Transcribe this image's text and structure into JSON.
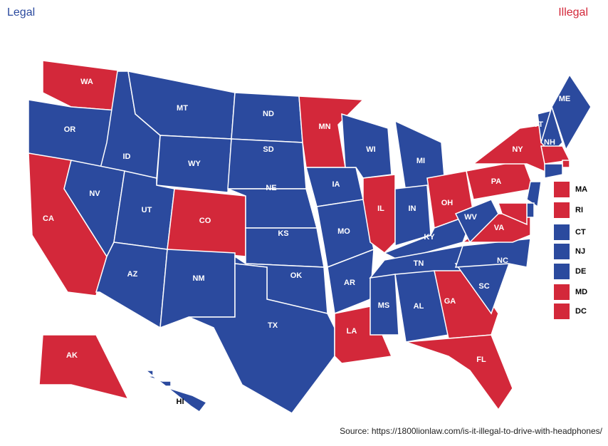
{
  "legend": {
    "legal": {
      "label": "Legal",
      "color": "#2b4a9e"
    },
    "illegal": {
      "label": "Illegal",
      "color": "#d3283a"
    }
  },
  "states": [
    {
      "label": "WA",
      "color": "#d3283a"
    },
    {
      "label": "OR",
      "color": "#2b4a9e"
    },
    {
      "label": "CA",
      "color": "#d3283a"
    },
    {
      "label": "ID",
      "color": "#2b4a9e"
    },
    {
      "label": "NV",
      "color": "#2b4a9e"
    },
    {
      "label": "MT",
      "color": "#2b4a9e"
    },
    {
      "label": "WY",
      "color": "#2b4a9e"
    },
    {
      "label": "UT",
      "color": "#2b4a9e"
    },
    {
      "label": "CO",
      "color": "#d3283a"
    },
    {
      "label": "AZ",
      "color": "#2b4a9e"
    },
    {
      "label": "NM",
      "color": "#2b4a9e"
    },
    {
      "label": "ND",
      "color": "#2b4a9e"
    },
    {
      "label": "SD",
      "color": "#2b4a9e"
    },
    {
      "label": "NE",
      "color": "#2b4a9e"
    },
    {
      "label": "KS",
      "color": "#2b4a9e"
    },
    {
      "label": "OK",
      "color": "#2b4a9e"
    },
    {
      "label": "TX",
      "color": "#2b4a9e"
    },
    {
      "label": "MN",
      "color": "#d3283a"
    },
    {
      "label": "IA",
      "color": "#2b4a9e"
    },
    {
      "label": "MO",
      "color": "#2b4a9e"
    },
    {
      "label": "AR",
      "color": "#2b4a9e"
    },
    {
      "label": "LA",
      "color": "#d3283a"
    },
    {
      "label": "WI",
      "color": "#2b4a9e"
    },
    {
      "label": "IL",
      "color": "#d3283a"
    },
    {
      "label": "MI",
      "color": "#2b4a9e"
    },
    {
      "label": "IN",
      "color": "#2b4a9e"
    },
    {
      "label": "OH",
      "color": "#d3283a"
    },
    {
      "label": "KY",
      "color": "#2b4a9e"
    },
    {
      "label": "TN",
      "color": "#2b4a9e"
    },
    {
      "label": "MS",
      "color": "#2b4a9e"
    },
    {
      "label": "AL",
      "color": "#2b4a9e"
    },
    {
      "label": "GA",
      "color": "#d3283a"
    },
    {
      "label": "FL",
      "color": "#d3283a"
    },
    {
      "label": "SC",
      "color": "#2b4a9e"
    },
    {
      "label": "NC",
      "color": "#2b4a9e"
    },
    {
      "label": "VA",
      "color": "#d3283a"
    },
    {
      "label": "WV",
      "color": "#2b4a9e"
    },
    {
      "label": "PA",
      "color": "#d3283a"
    },
    {
      "label": "NY",
      "color": "#d3283a"
    },
    {
      "label": "VT",
      "color": "#2b4a9e"
    },
    {
      "label": "NH",
      "color": "#2b4a9e"
    },
    {
      "label": "ME",
      "color": "#2b4a9e"
    },
    {
      "label": "AK",
      "color": "#d3283a"
    },
    {
      "label": "HI",
      "color": "#2b4a9e"
    },
    {
      "label": "MA",
      "color": "#d3283a"
    },
    {
      "label": "RI",
      "color": "#d3283a"
    },
    {
      "label": "CT",
      "color": "#2b4a9e"
    },
    {
      "label": "NJ",
      "color": "#2b4a9e"
    },
    {
      "label": "DE",
      "color": "#2b4a9e"
    },
    {
      "label": "MD",
      "color": "#d3283a"
    },
    {
      "label": "DC",
      "color": "#d3283a"
    }
  ],
  "source": "Source: https://1800lionlaw.com/is-it-illegal-to-drive-with-headphones/"
}
